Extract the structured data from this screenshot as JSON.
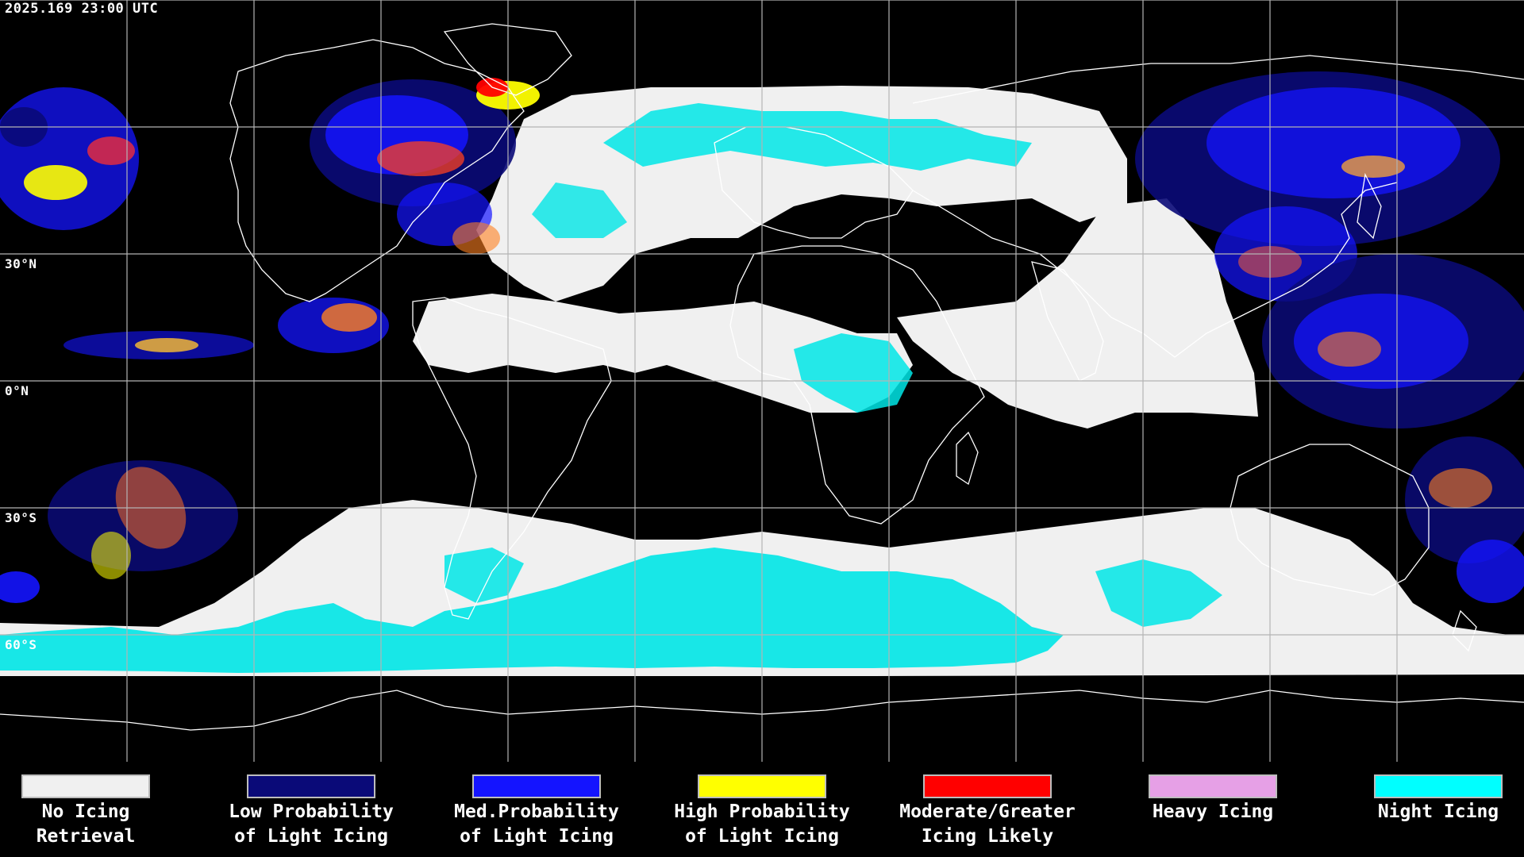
{
  "map": {
    "timestamp": "2025.169 23:00 UTC",
    "lat_labels": [
      "30°N",
      "0°N",
      "30°S",
      "60°S"
    ],
    "grid_color": "#b4b4b4",
    "coast_color": "#ffffff",
    "background_color": "#000000"
  },
  "legend": {
    "items": [
      {
        "line1": "No Icing",
        "line2": "Retrieval",
        "color": "#f0f0f0"
      },
      {
        "line1": "Low Probability",
        "line2": "of Light Icing",
        "color": "#0a0a78"
      },
      {
        "line1": "Med.Probability",
        "line2": "of Light Icing",
        "color": "#1414ff"
      },
      {
        "line1": "High Probability",
        "line2": "of Light Icing",
        "color": "#ffff00"
      },
      {
        "line1": "Moderate/Greater",
        "line2": "Icing Likely",
        "color": "#ff0000"
      },
      {
        "line1": "Heavy Icing",
        "line2": "",
        "color": "#e6a0e6"
      },
      {
        "line1": "Night Icing",
        "line2": "",
        "color": "#00ffff"
      }
    ]
  }
}
